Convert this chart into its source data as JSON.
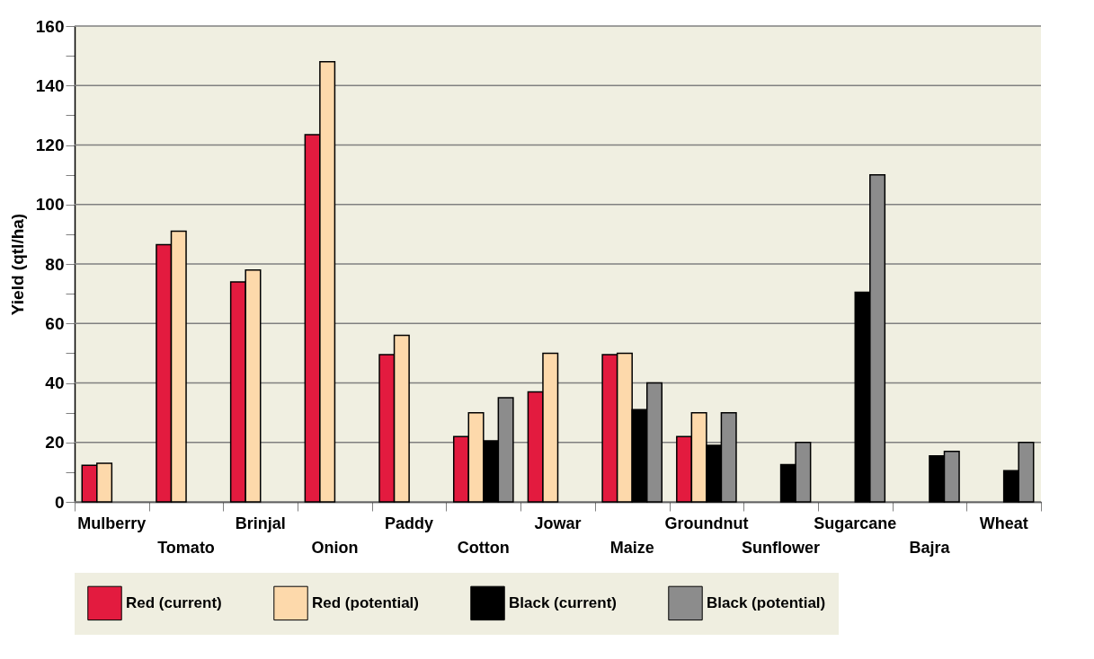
{
  "chart_data": {
    "type": "bar",
    "ylabel": "Yield (qtl/ha)",
    "categories": [
      "Mulberry",
      "Tomato",
      "Brinjal",
      "Onion",
      "Paddy",
      "Cotton",
      "Jowar",
      "Maize",
      "Groundnut",
      "Sunflower",
      "Sugarcane",
      "Bajra",
      "Wheat"
    ],
    "series": [
      {
        "name": "Red (current)",
        "color": "#e31b3f",
        "values": [
          12.3,
          86.5,
          74,
          123.5,
          49.5,
          22,
          37,
          49.5,
          22,
          null,
          null,
          null,
          null
        ]
      },
      {
        "name": "Red (potential)",
        "color": "#fdd9ab",
        "values": [
          13,
          91,
          78,
          148,
          56,
          30,
          50,
          50,
          30,
          null,
          null,
          null,
          null
        ]
      },
      {
        "name": "Black (current)",
        "color": "#000000",
        "values": [
          null,
          null,
          null,
          null,
          null,
          20.5,
          null,
          31,
          19,
          12.5,
          70.5,
          15.5,
          10.5
        ]
      },
      {
        "name": "Black (potential)",
        "color": "#8c8c8c",
        "values": [
          null,
          null,
          null,
          null,
          null,
          35,
          null,
          40,
          30,
          20,
          110,
          17,
          20
        ]
      }
    ],
    "ylim": [
      0,
      160
    ],
    "yticks": [
      0,
      {
        "value": 10,
        "label": null
      },
      20,
      {
        "value": 30,
        "label": null
      },
      40,
      {
        "value": 50,
        "label": null
      },
      60,
      {
        "value": 70,
        "label": null
      },
      80,
      {
        "value": 90,
        "label": null
      },
      100,
      {
        "value": 110,
        "label": null
      },
      120,
      {
        "value": 130,
        "label": null
      },
      140,
      {
        "value": 150,
        "label": null
      },
      160
    ],
    "grid": "y",
    "legend": "bottom"
  }
}
